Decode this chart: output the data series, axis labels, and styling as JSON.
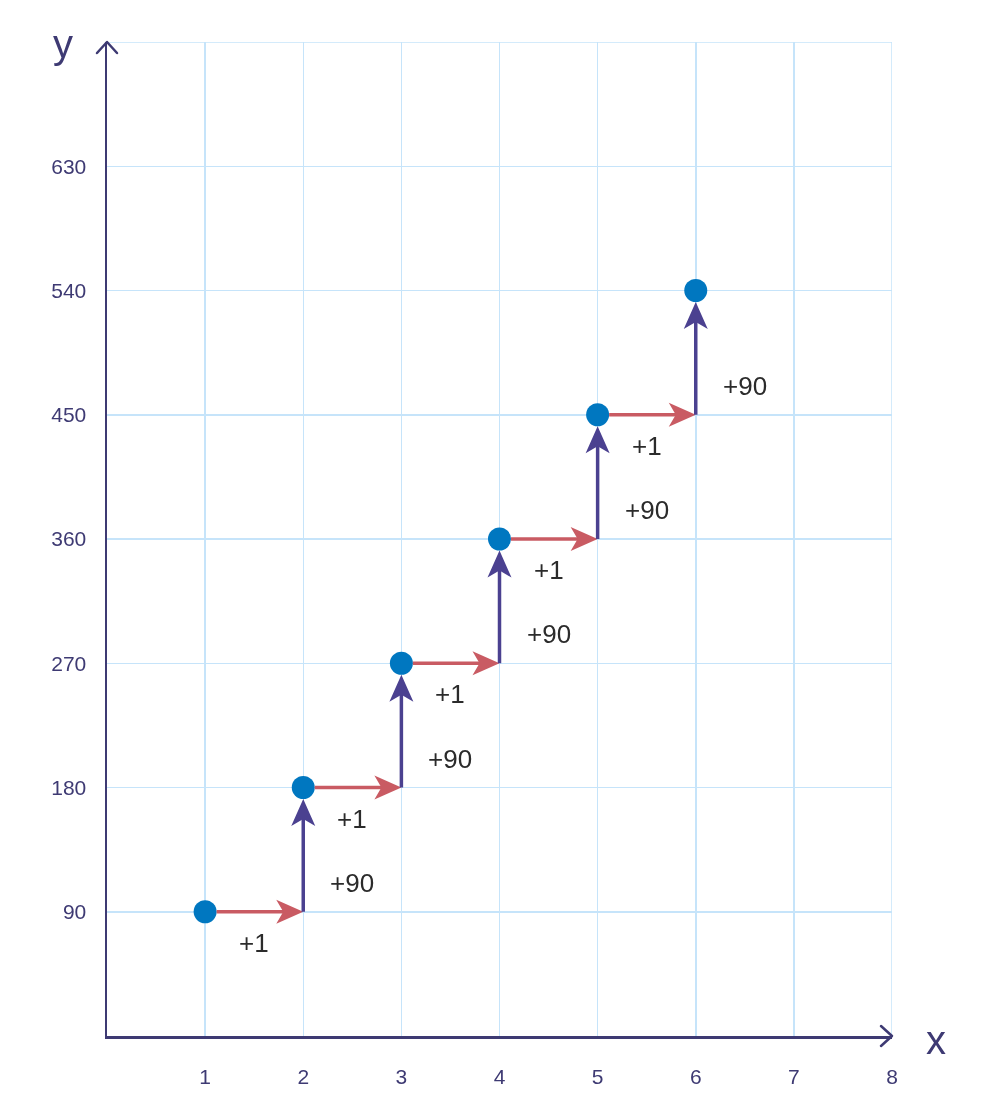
{
  "chart_data": {
    "type": "scatter",
    "xlabel": "x",
    "ylabel": "y",
    "x": [
      1,
      2,
      3,
      4,
      5,
      6
    ],
    "series": [
      {
        "color": "#0077c0",
        "values": [
          90,
          180,
          270,
          360,
          450,
          540
        ]
      }
    ],
    "marker": "circle",
    "xlim": [
      0,
      8
    ],
    "xticks": [
      1,
      2,
      3,
      4,
      5,
      6,
      7,
      8
    ],
    "ylim": [
      0,
      720
    ],
    "yticks": [
      90,
      180,
      270,
      360,
      450,
      540,
      630,
      {
        "value": 720,
        "label": null
      }
    ],
    "grid": true,
    "annotations": [
      "+1",
      "+90",
      "+1",
      "+90",
      "+1",
      "+90",
      "+1",
      "+90",
      "+1",
      "+90"
    ]
  }
}
